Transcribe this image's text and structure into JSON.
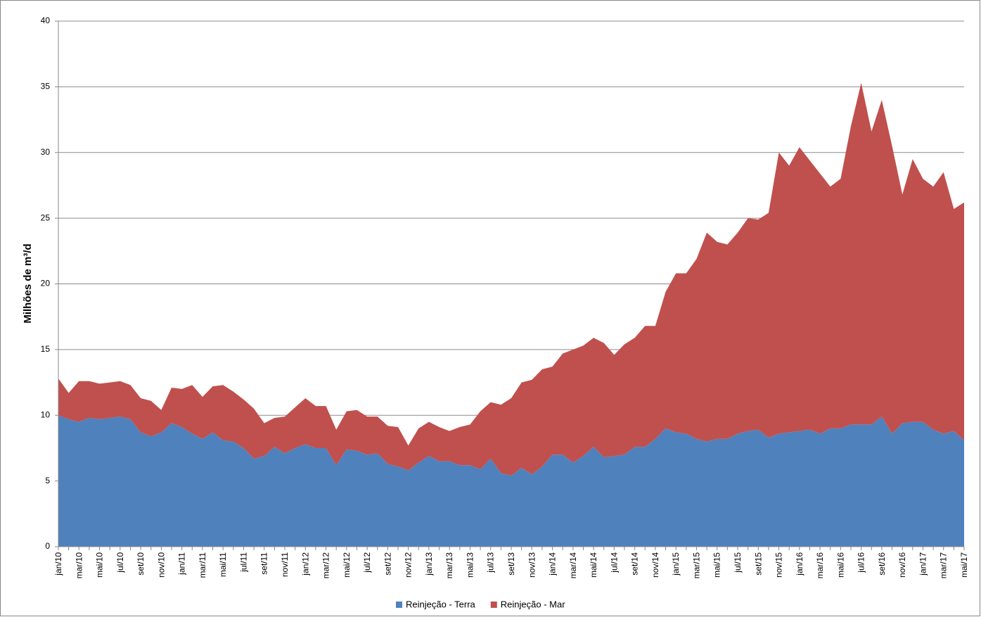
{
  "chart_data": {
    "type": "stacked-area",
    "y_label": "Milhões de m³/d",
    "categories": [
      "jan/10",
      null,
      "mar/10",
      null,
      "mai/10",
      null,
      "jul/10",
      null,
      "set/10",
      null,
      "nov/10",
      null,
      "jan/11",
      null,
      "mar/11",
      null,
      "mai/11",
      null,
      "jul/11",
      null,
      "set/11",
      null,
      "nov/11",
      null,
      "jan/12",
      null,
      "mar/12",
      null,
      "mai/12",
      null,
      "jul/12",
      null,
      "set/12",
      null,
      "nov/12",
      null,
      "jan/13",
      null,
      "mar/13",
      null,
      "mai/13",
      null,
      "jul/13",
      null,
      "set/13",
      null,
      "nov/13",
      null,
      "jan/14",
      null,
      "mar/14",
      null,
      "mai/14",
      null,
      "jul/14",
      null,
      "set/14",
      null,
      "nov/14",
      null,
      "jan/15",
      null,
      "mar/15",
      null,
      "mai/15",
      null,
      "jul/15",
      null,
      "set/15",
      null,
      "nov/15",
      null,
      "jan/16",
      null,
      "mar/16",
      null,
      "mai/16",
      null,
      "jul/16",
      null,
      "set/16",
      null,
      "nov/16",
      null,
      "jan/17",
      null,
      "mar/17",
      null,
      "mai/17"
    ],
    "series": [
      {
        "name": "Reinjeção - Terra",
        "color": "#4f81bd",
        "values": [
          10.0,
          9.7,
          9.5,
          9.8,
          9.7,
          9.8,
          9.9,
          9.7,
          8.7,
          8.4,
          8.7,
          9.4,
          9.1,
          8.6,
          8.2,
          8.7,
          8.1,
          8.0,
          7.5,
          6.7,
          6.9,
          7.6,
          7.1,
          7.5,
          7.8,
          7.5,
          7.5,
          6.2,
          7.4,
          7.3,
          7.0,
          7.1,
          6.3,
          6.1,
          5.8,
          6.4,
          6.9,
          6.5,
          6.5,
          6.2,
          6.2,
          5.9,
          6.7,
          5.6,
          5.4,
          6.0,
          5.5,
          6.1,
          7.0,
          7.0,
          6.4,
          6.9,
          7.6,
          6.8,
          6.9,
          7.0,
          7.6,
          7.6,
          8.2,
          9.0,
          8.7,
          8.6,
          8.2,
          8.0,
          8.2,
          8.2,
          8.6,
          8.8,
          8.9,
          8.3,
          8.6,
          8.7,
          8.8,
          8.9,
          8.6,
          9.0,
          9.0,
          9.3,
          9.3,
          9.3,
          9.9,
          8.6,
          9.4,
          9.5,
          9.5,
          8.9,
          8.6,
          8.8,
          8.1
        ]
      },
      {
        "name": "Reinjeção - Mar",
        "color": "#c0504d",
        "values": [
          2.8,
          2.0,
          3.1,
          2.8,
          2.7,
          2.7,
          2.7,
          2.6,
          2.6,
          2.7,
          1.7,
          2.7,
          2.9,
          3.7,
          3.2,
          3.5,
          4.2,
          3.8,
          3.7,
          3.8,
          2.5,
          2.2,
          2.8,
          3.1,
          3.5,
          3.2,
          3.2,
          2.7,
          2.9,
          3.1,
          2.9,
          2.8,
          2.9,
          3.0,
          1.9,
          2.6,
          2.6,
          2.6,
          2.3,
          2.9,
          3.1,
          4.4,
          4.3,
          5.2,
          5.9,
          6.5,
          7.2,
          7.4,
          6.7,
          7.7,
          8.6,
          8.4,
          8.3,
          8.7,
          7.7,
          8.4,
          8.3,
          9.2,
          8.6,
          10.4,
          12.1,
          12.2,
          13.7,
          15.9,
          15.0,
          14.8,
          15.3,
          16.2,
          16.0,
          17.1,
          21.4,
          20.3,
          21.6,
          20.5,
          19.8,
          18.4,
          19.0,
          22.7,
          26.0,
          22.3,
          24.1,
          21.9,
          17.4,
          20.0,
          18.5,
          18.5,
          19.9,
          16.9,
          18.1
        ]
      }
    ],
    "ylim": [
      0,
      40
    ],
    "yticks": [
      0,
      5,
      10,
      15,
      20,
      25,
      30,
      35,
      40
    ],
    "grid": true,
    "legend": "bottom"
  }
}
